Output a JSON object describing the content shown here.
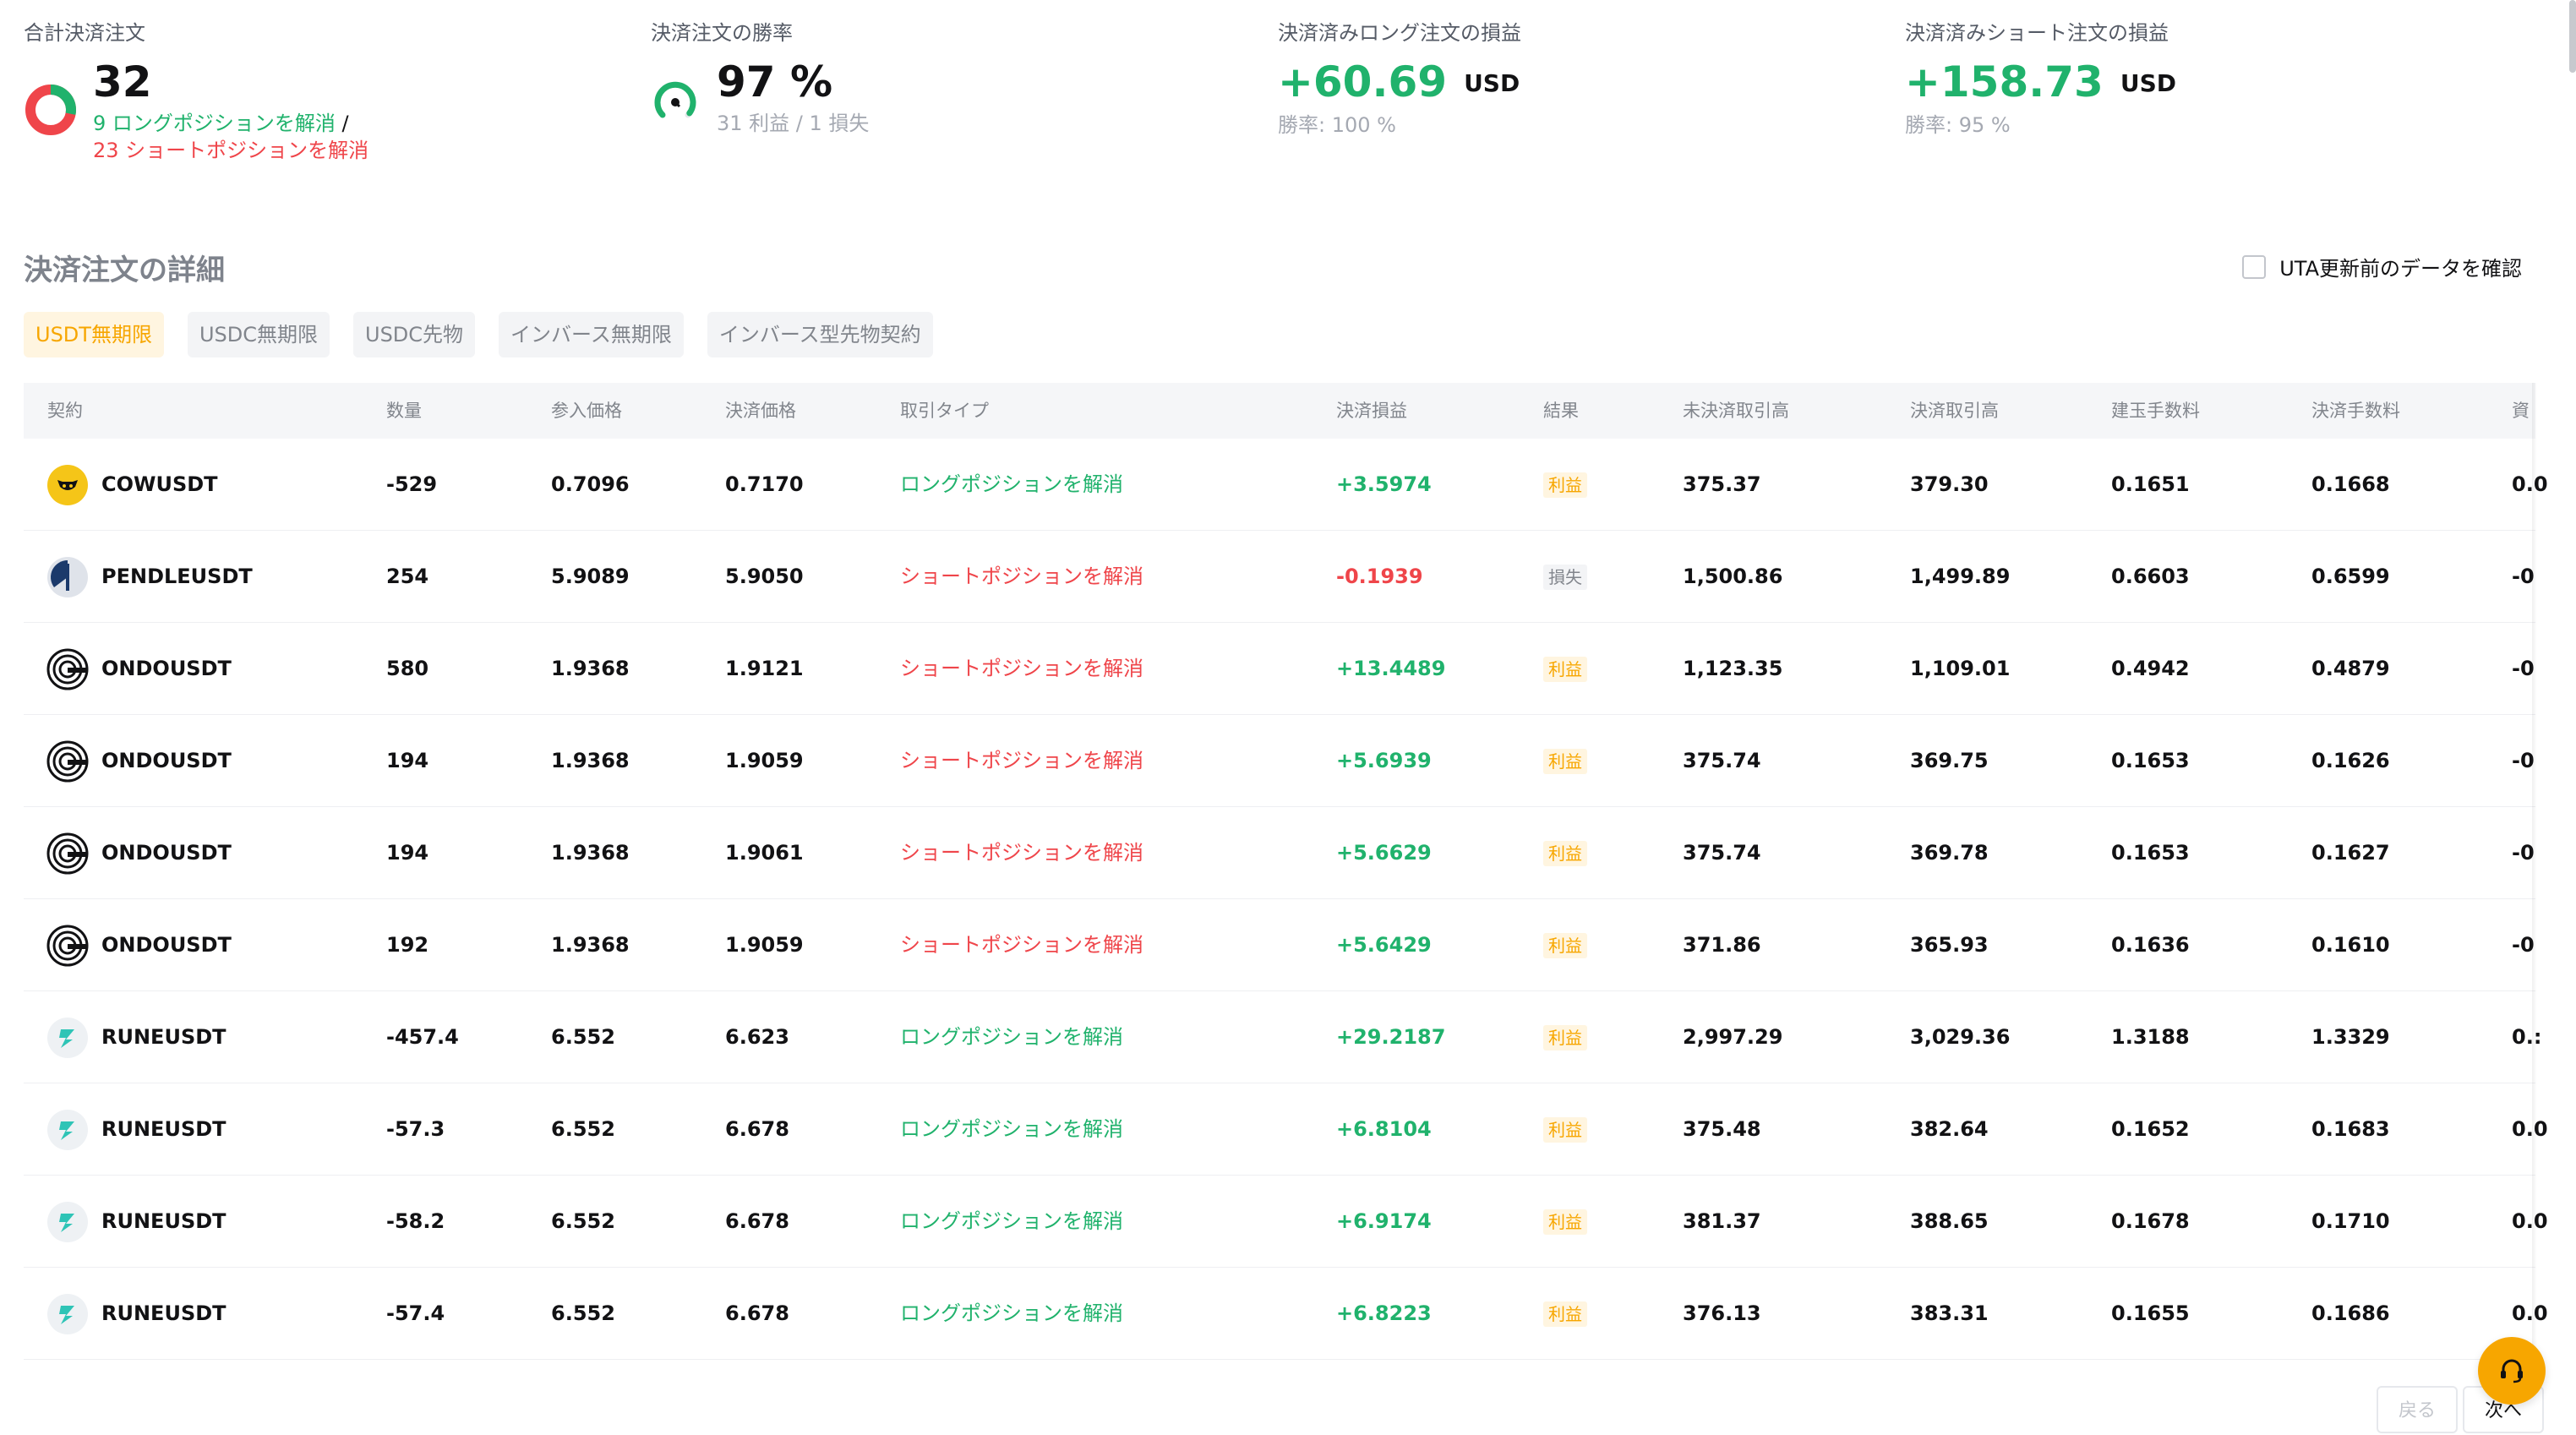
{
  "stats": {
    "total": {
      "label": "合計決済注文",
      "value": "32",
      "long_text": "9 ロングポジションを解消",
      "separator": " /",
      "short_text": "23 ショートポジションを解消",
      "long_count": 9,
      "short_count": 23
    },
    "win_rate": {
      "label": "決済注文の勝率",
      "value": "97 %",
      "detail": "31 利益 / 1 損失",
      "rate": 0.97
    },
    "long_pnl": {
      "label": "決済済みロング注文の損益",
      "value": "+60.69",
      "unit": "USD",
      "detail": "勝率: 100 %"
    },
    "short_pnl": {
      "label": "決済済みショート注文の損益",
      "value": "+158.73",
      "unit": "USD",
      "detail": "勝率: 95 %"
    }
  },
  "details": {
    "title": "決済注文の詳細",
    "uta_checkbox_label": "UTA更新前のデータを確認",
    "uta_checked": false
  },
  "tabs": [
    {
      "label": "USDT無期限",
      "active": true
    },
    {
      "label": "USDC無期限",
      "active": false
    },
    {
      "label": "USDC先物",
      "active": false
    },
    {
      "label": "インバース無期限",
      "active": false
    },
    {
      "label": "インバース型先物契約",
      "active": false
    }
  ],
  "table": {
    "headers": {
      "contract": "契約",
      "qty": "数量",
      "entry": "参入価格",
      "exit": "決済価格",
      "type": "取引タイプ",
      "pnl": "決済損益",
      "result": "結果",
      "open_value": "未決済取引高",
      "close_value": "決済取引高",
      "open_fee": "建玉手数料",
      "close_fee": "決済手数料",
      "funding": "資"
    },
    "rows": [
      {
        "coin": "cow-coin-icon",
        "contract": "COWUSDT",
        "qty": "-529",
        "entry": "0.7096",
        "exit": "0.7170",
        "type": "ロングポジションを解消",
        "side": "long",
        "pnl": "+3.5974",
        "pnl_sign": "pos",
        "result": "利益",
        "win": true,
        "open_value": "375.37",
        "close_value": "379.30",
        "open_fee": "0.1651",
        "close_fee": "0.1668",
        "funding": "0.0"
      },
      {
        "coin": "pendle-coin-icon",
        "contract": "PENDLEUSDT",
        "qty": "254",
        "entry": "5.9089",
        "exit": "5.9050",
        "type": "ショートポジションを解消",
        "side": "short",
        "pnl": "-0.1939",
        "pnl_sign": "neg",
        "result": "損失",
        "win": false,
        "open_value": "1,500.86",
        "close_value": "1,499.89",
        "open_fee": "0.6603",
        "close_fee": "0.6599",
        "funding": "-0"
      },
      {
        "coin": "ondo-coin-icon",
        "contract": "ONDOUSDT",
        "qty": "580",
        "entry": "1.9368",
        "exit": "1.9121",
        "type": "ショートポジションを解消",
        "side": "short",
        "pnl": "+13.4489",
        "pnl_sign": "pos",
        "result": "利益",
        "win": true,
        "open_value": "1,123.35",
        "close_value": "1,109.01",
        "open_fee": "0.4942",
        "close_fee": "0.4879",
        "funding": "-0"
      },
      {
        "coin": "ondo-coin-icon",
        "contract": "ONDOUSDT",
        "qty": "194",
        "entry": "1.9368",
        "exit": "1.9059",
        "type": "ショートポジションを解消",
        "side": "short",
        "pnl": "+5.6939",
        "pnl_sign": "pos",
        "result": "利益",
        "win": true,
        "open_value": "375.74",
        "close_value": "369.75",
        "open_fee": "0.1653",
        "close_fee": "0.1626",
        "funding": "-0"
      },
      {
        "coin": "ondo-coin-icon",
        "contract": "ONDOUSDT",
        "qty": "194",
        "entry": "1.9368",
        "exit": "1.9061",
        "type": "ショートポジションを解消",
        "side": "short",
        "pnl": "+5.6629",
        "pnl_sign": "pos",
        "result": "利益",
        "win": true,
        "open_value": "375.74",
        "close_value": "369.78",
        "open_fee": "0.1653",
        "close_fee": "0.1627",
        "funding": "-0"
      },
      {
        "coin": "ondo-coin-icon",
        "contract": "ONDOUSDT",
        "qty": "192",
        "entry": "1.9368",
        "exit": "1.9059",
        "type": "ショートポジションを解消",
        "side": "short",
        "pnl": "+5.6429",
        "pnl_sign": "pos",
        "result": "利益",
        "win": true,
        "open_value": "371.86",
        "close_value": "365.93",
        "open_fee": "0.1636",
        "close_fee": "0.1610",
        "funding": "-0"
      },
      {
        "coin": "rune-coin-icon",
        "contract": "RUNEUSDT",
        "qty": "-457.4",
        "entry": "6.552",
        "exit": "6.623",
        "type": "ロングポジションを解消",
        "side": "long",
        "pnl": "+29.2187",
        "pnl_sign": "pos",
        "result": "利益",
        "win": true,
        "open_value": "2,997.29",
        "close_value": "3,029.36",
        "open_fee": "1.3188",
        "close_fee": "1.3329",
        "funding": "0.:"
      },
      {
        "coin": "rune-coin-icon",
        "contract": "RUNEUSDT",
        "qty": "-57.3",
        "entry": "6.552",
        "exit": "6.678",
        "type": "ロングポジションを解消",
        "side": "long",
        "pnl": "+6.8104",
        "pnl_sign": "pos",
        "result": "利益",
        "win": true,
        "open_value": "375.48",
        "close_value": "382.64",
        "open_fee": "0.1652",
        "close_fee": "0.1683",
        "funding": "0.0"
      },
      {
        "coin": "rune-coin-icon",
        "contract": "RUNEUSDT",
        "qty": "-58.2",
        "entry": "6.552",
        "exit": "6.678",
        "type": "ロングポジションを解消",
        "side": "long",
        "pnl": "+6.9174",
        "pnl_sign": "pos",
        "result": "利益",
        "win": true,
        "open_value": "381.37",
        "close_value": "388.65",
        "open_fee": "0.1678",
        "close_fee": "0.1710",
        "funding": "0.0"
      },
      {
        "coin": "rune-coin-icon",
        "contract": "RUNEUSDT",
        "qty": "-57.4",
        "entry": "6.552",
        "exit": "6.678",
        "type": "ロングポジションを解消",
        "side": "long",
        "pnl": "+6.8223",
        "pnl_sign": "pos",
        "result": "利益",
        "win": true,
        "open_value": "376.13",
        "close_value": "383.31",
        "open_fee": "0.1655",
        "close_fee": "0.1686",
        "funding": "0.0"
      }
    ]
  },
  "pagination": {
    "prev_label": "戻る",
    "next_label": "次へ"
  },
  "colors": {
    "green": "#20b26c",
    "red": "#ef454a",
    "accent": "#f7a600"
  }
}
